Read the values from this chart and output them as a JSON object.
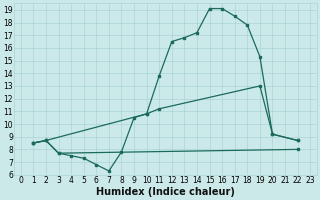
{
  "xlabel": "Humidex (Indice chaleur)",
  "xlim": [
    -0.5,
    23.5
  ],
  "ylim": [
    6,
    19.5
  ],
  "xticks": [
    0,
    1,
    2,
    3,
    4,
    5,
    6,
    7,
    8,
    9,
    10,
    11,
    12,
    13,
    14,
    15,
    16,
    17,
    18,
    19,
    20,
    21,
    22,
    23
  ],
  "yticks": [
    6,
    7,
    8,
    9,
    10,
    11,
    12,
    13,
    14,
    15,
    16,
    17,
    18,
    19
  ],
  "bg_color": "#cce9e9",
  "grid_color": "#aad4d4",
  "line_color": "#1a6b5a",
  "curve1_x": [
    1,
    2,
    3,
    4,
    5,
    6,
    7,
    8,
    9,
    10,
    11,
    12,
    13,
    14,
    15,
    16,
    17,
    18,
    19,
    20,
    22
  ],
  "curve1_y": [
    8.5,
    8.7,
    7.7,
    7.5,
    7.3,
    6.8,
    6.3,
    7.8,
    10.5,
    10.8,
    13.8,
    16.5,
    16.8,
    17.2,
    19.1,
    19.1,
    18.5,
    17.8,
    15.3,
    9.2,
    8.7
  ],
  "curve2_x": [
    1,
    2,
    10,
    11,
    19,
    20,
    22
  ],
  "curve2_y": [
    8.5,
    8.7,
    10.8,
    11.2,
    13.0,
    9.2,
    8.7
  ],
  "curve3_x": [
    1,
    2,
    3,
    22
  ],
  "curve3_y": [
    8.5,
    8.7,
    7.7,
    8.0
  ],
  "xlabel_fontsize": 7,
  "tick_fontsize": 5.5
}
